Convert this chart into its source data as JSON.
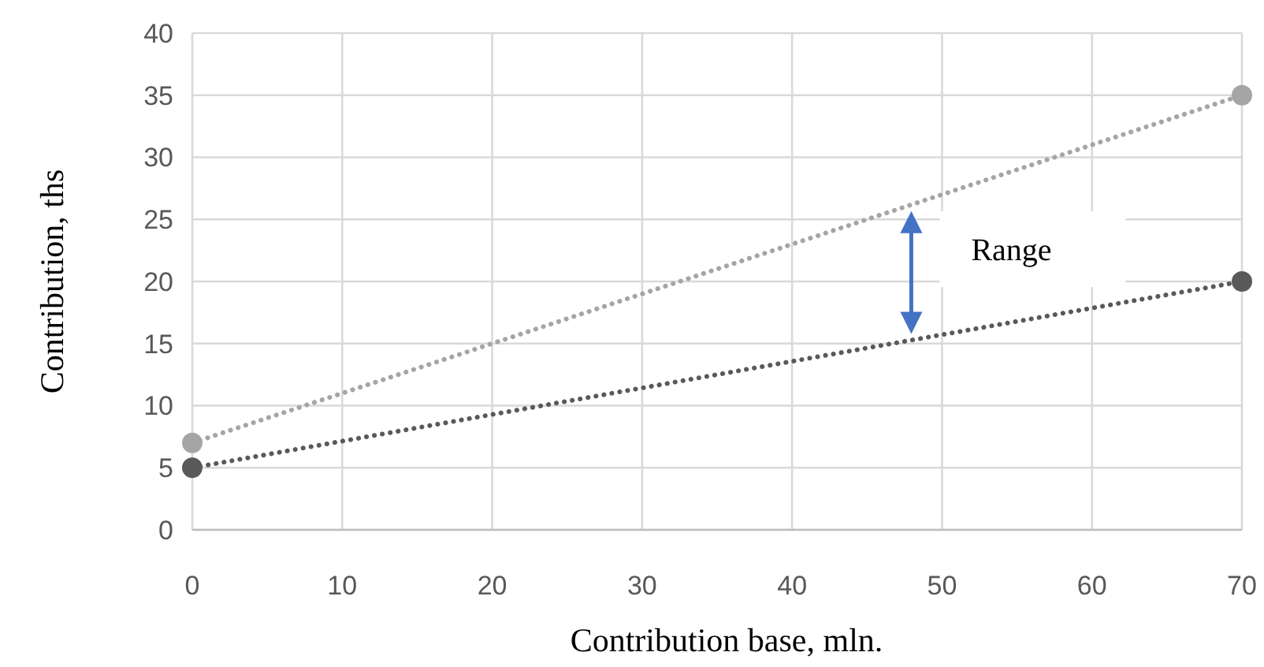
{
  "chart_data": {
    "type": "line",
    "xlabel": "Contribution base, mln.",
    "ylabel": "Contribution, ths",
    "xlim": [
      0,
      70
    ],
    "xticks": [
      0,
      10,
      20,
      30,
      40,
      50,
      60,
      70
    ],
    "ylim": [
      0,
      40
    ],
    "yticks": [
      0,
      5,
      10,
      15,
      20,
      25,
      30,
      35,
      40
    ],
    "x": [
      0,
      70
    ],
    "grid": true,
    "marker": "circle",
    "line_style": "dotted",
    "series": [
      {
        "color": "#a5a5a5",
        "values": [
          7,
          35
        ]
      },
      {
        "color": "#595959",
        "values": [
          5,
          20
        ]
      }
    ],
    "annotations": [
      "Range"
    ]
  }
}
